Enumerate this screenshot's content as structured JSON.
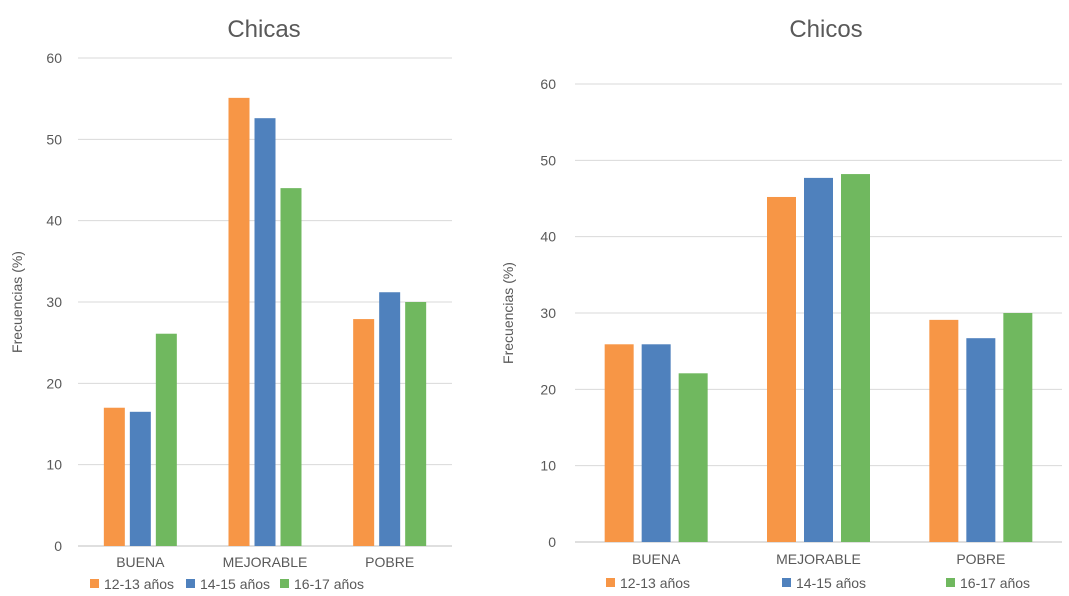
{
  "chart_data": [
    {
      "type": "bar",
      "title": "Chicas",
      "ylabel": "Frecuencias (%)",
      "xlabel": "",
      "categories": [
        "BUENA",
        "MEJORABLE",
        "POBRE"
      ],
      "ylim": [
        0,
        60
      ],
      "yticks": [
        "0",
        "10",
        "20",
        "30",
        "40",
        "50",
        "60"
      ],
      "grid": true,
      "legend_position": "bottom",
      "series": [
        {
          "name": "12-13 años",
          "color": "#F79646",
          "values": [
            17,
            55.1,
            27.9
          ]
        },
        {
          "name": "14-15 años",
          "color": "#4F81BD",
          "values": [
            16.5,
            52.6,
            31.2
          ]
        },
        {
          "name": "16-17 años",
          "color": "#70B85F",
          "values": [
            26.1,
            44,
            30
          ]
        }
      ]
    },
    {
      "type": "bar",
      "title": "Chicos",
      "ylabel": "Frecuencias (%)",
      "xlabel": "",
      "categories": [
        "BUENA",
        "MEJORABLE",
        "POBRE"
      ],
      "ylim": [
        0,
        60
      ],
      "yticks": [
        "0",
        "10",
        "20",
        "30",
        "40",
        "50",
        "60"
      ],
      "grid": true,
      "legend_position": "bottom",
      "series": [
        {
          "name": "12-13 años",
          "color": "#F79646",
          "values": [
            25.9,
            45.2,
            29.1
          ]
        },
        {
          "name": "14-15 años",
          "color": "#4F81BD",
          "values": [
            25.9,
            47.7,
            26.7
          ]
        },
        {
          "name": "16-17 años",
          "color": "#70B85F",
          "values": [
            22.1,
            48.2,
            30
          ]
        }
      ]
    }
  ]
}
